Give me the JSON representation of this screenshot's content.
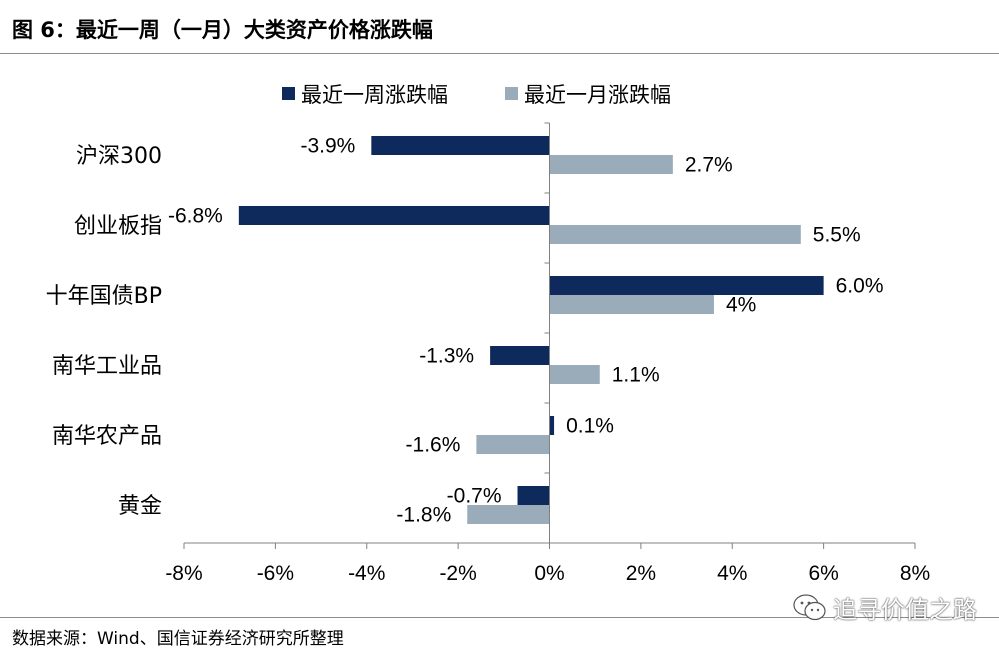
{
  "figure": {
    "title": "图 6：最近一周（一月）大类资产价格涨跌幅",
    "source": "数据来源：Wind、国信证券经济研究所整理",
    "watermark": "追寻价值之路",
    "watermark_icon": "wechat-icon"
  },
  "chart_data": {
    "type": "bar",
    "orientation": "horizontal",
    "categories": [
      "沪深300",
      "创业板指",
      "十年国债BP",
      "南华工业品",
      "南华农产品",
      "黄金"
    ],
    "series": [
      {
        "name": "最近一周涨跌幅",
        "color": "#0e2a5c",
        "values": [
          -3.9,
          -6.8,
          6.0,
          -1.3,
          0.1,
          -0.7
        ],
        "labels": [
          "-3.9%",
          "-6.8%",
          "6.0%",
          "-1.3%",
          "0.1%",
          "-0.7%"
        ]
      },
      {
        "name": "最近一月涨跌幅",
        "color": "#9aabb9",
        "values": [
          2.7,
          5.5,
          3.6,
          1.1,
          -1.6,
          -1.8
        ],
        "labels": [
          "2.7%",
          "5.5%",
          "4%",
          "1.1%",
          "-1.6%",
          "-1.8%"
        ]
      }
    ],
    "xlim": [
      -8,
      8
    ],
    "xticks": [
      -8,
      -6,
      -4,
      -2,
      0,
      2,
      4,
      6,
      8
    ],
    "xtick_labels": [
      "-8%",
      "-6%",
      "-4%",
      "-2%",
      "0%",
      "2%",
      "4%",
      "6%",
      "8%"
    ],
    "grid": false,
    "legend_position": "top"
  }
}
